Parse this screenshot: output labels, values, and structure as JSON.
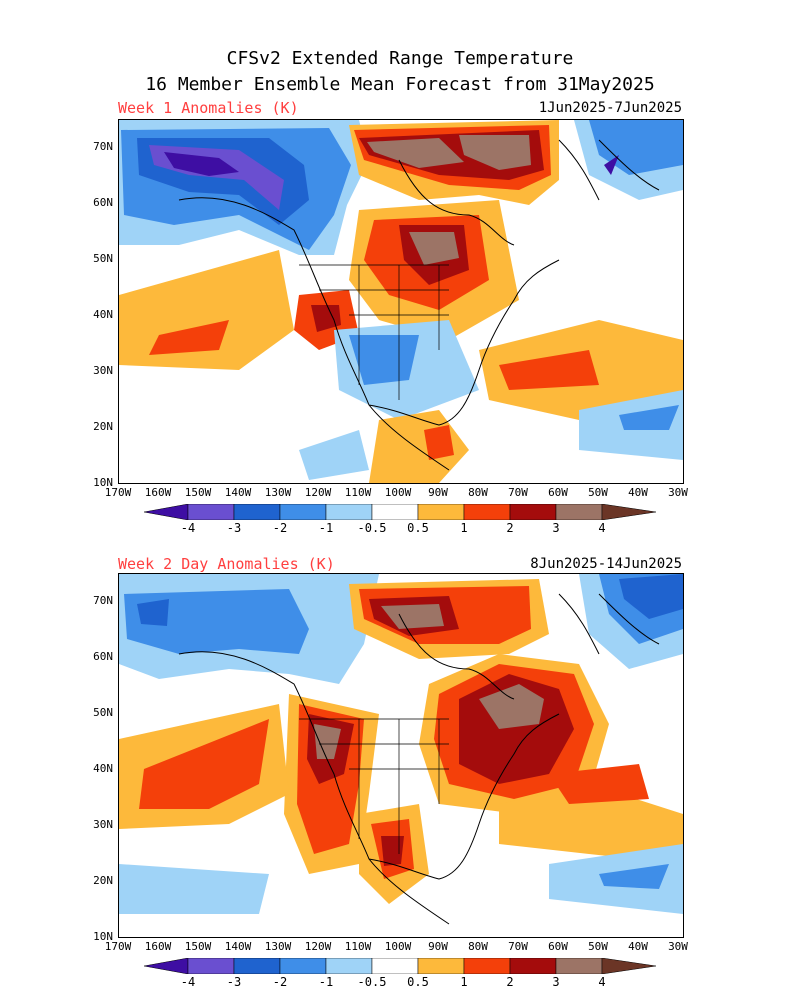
{
  "header": {
    "line1": "CFSv2 Extended Range Temperature",
    "line2": "16 Member Ensemble Mean Forecast from 31May2025"
  },
  "panels": [
    {
      "title": "Week 1 Anomalies (K)",
      "dates": "1Jun2025-7Jun2025"
    },
    {
      "title": "Week 2 Day Anomalies (K)",
      "dates": "8Jun2025-14Jun2025"
    }
  ],
  "axes": {
    "lat_labels": [
      "70N",
      "60N",
      "50N",
      "40N",
      "30N",
      "20N",
      "10N"
    ],
    "lon_labels": [
      "170W",
      "160W",
      "150W",
      "140W",
      "130W",
      "120W",
      "110W",
      "100W",
      "90W",
      "80W",
      "70W",
      "60W",
      "50W",
      "40W",
      "30W"
    ]
  },
  "colorbar": {
    "labels": [
      "-4",
      "-3",
      "-2",
      "-1",
      "-0.5",
      "0.5",
      "1",
      "2",
      "3",
      "4"
    ],
    "colors": [
      "#3e0ea3",
      "#6a4fd0",
      "#1f63cf",
      "#3f8ee8",
      "#9fd3f7",
      "#ffffff",
      "#fdb93b",
      "#f4400a",
      "#a40c0c",
      "#9c7466",
      "#6b3526"
    ]
  }
}
